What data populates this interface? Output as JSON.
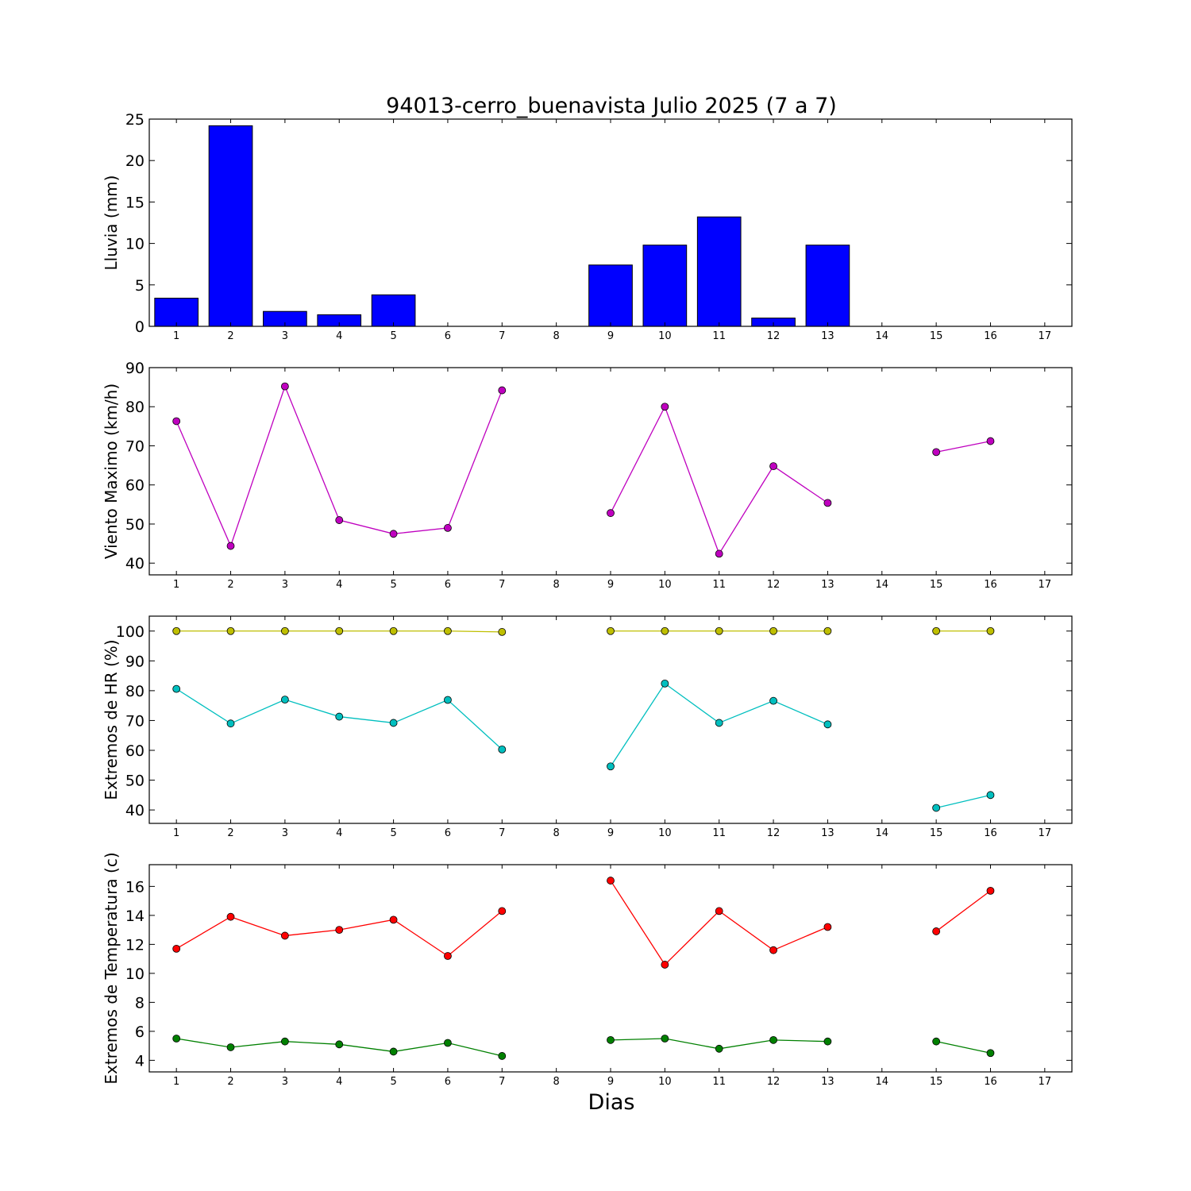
{
  "figure": {
    "title": "94013-cerro_buenavista Julio 2025  (7 a 7)",
    "xlabel": "Dias"
  },
  "chart_data": [
    {
      "type": "bar",
      "ylabel": "Lluvia (mm)",
      "ylim": [
        0,
        25
      ],
      "yticks": [
        0,
        5,
        10,
        15,
        20,
        25
      ],
      "xlim": [
        0.5,
        17.5
      ],
      "xticks": [
        1,
        2,
        3,
        4,
        5,
        6,
        7,
        8,
        9,
        10,
        11,
        12,
        13,
        14,
        15,
        16,
        17
      ],
      "categories": [
        1,
        2,
        3,
        4,
        5,
        6,
        7,
        8,
        9,
        10,
        11,
        12,
        13,
        14,
        15,
        16,
        17
      ],
      "values": [
        3.4,
        24.2,
        1.8,
        1.4,
        3.8,
        0,
        0,
        null,
        7.4,
        9.8,
        13.2,
        1.0,
        9.8,
        null,
        0,
        0,
        null
      ],
      "color": "#0000ff"
    },
    {
      "type": "line",
      "ylabel": "Viento Maximo (km/h)",
      "ylim": [
        37,
        90
      ],
      "yticks": [
        40,
        50,
        60,
        70,
        80,
        90
      ],
      "xlim": [
        0.5,
        17.5
      ],
      "xticks": [
        1,
        2,
        3,
        4,
        5,
        6,
        7,
        8,
        9,
        10,
        11,
        12,
        13,
        14,
        15,
        16,
        17
      ],
      "x": [
        1,
        2,
        3,
        4,
        5,
        6,
        7,
        8,
        9,
        10,
        11,
        12,
        13,
        14,
        15,
        16,
        17
      ],
      "series": [
        {
          "values": [
            76.3,
            44.4,
            85.2,
            51.0,
            47.5,
            49.0,
            84.2,
            null,
            52.8,
            80.0,
            42.4,
            64.8,
            55.4,
            null,
            68.4,
            71.2,
            null
          ],
          "color": "#bf00bf"
        }
      ]
    },
    {
      "type": "line",
      "ylabel": "Extremos de HR (%)",
      "ylim": [
        35.5,
        105
      ],
      "yticks": [
        40,
        50,
        60,
        70,
        80,
        90,
        100
      ],
      "xlim": [
        0.5,
        17.5
      ],
      "xticks": [
        1,
        2,
        3,
        4,
        5,
        6,
        7,
        8,
        9,
        10,
        11,
        12,
        13,
        14,
        15,
        16,
        17
      ],
      "x": [
        1,
        2,
        3,
        4,
        5,
        6,
        7,
        8,
        9,
        10,
        11,
        12,
        13,
        14,
        15,
        16,
        17
      ],
      "series": [
        {
          "values": [
            100,
            100,
            100,
            100,
            100,
            100,
            99.7,
            null,
            100,
            100,
            100,
            100,
            100,
            null,
            100,
            100,
            null
          ],
          "color": "#bfbf00"
        },
        {
          "values": [
            80.6,
            69.0,
            77.0,
            71.3,
            69.2,
            76.9,
            60.3,
            null,
            54.6,
            82.4,
            69.2,
            76.6,
            68.7,
            null,
            40.7,
            45.0,
            null
          ],
          "color": "#00bfbf"
        }
      ]
    },
    {
      "type": "line",
      "ylabel": "Extremos de Temperatura (c)",
      "ylim": [
        3.2,
        17.5
      ],
      "yticks": [
        4,
        6,
        8,
        10,
        12,
        14,
        16
      ],
      "xlim": [
        0.5,
        17.5
      ],
      "xticks": [
        1,
        2,
        3,
        4,
        5,
        6,
        7,
        8,
        9,
        10,
        11,
        12,
        13,
        14,
        15,
        16,
        17
      ],
      "x": [
        1,
        2,
        3,
        4,
        5,
        6,
        7,
        8,
        9,
        10,
        11,
        12,
        13,
        14,
        15,
        16,
        17
      ],
      "series": [
        {
          "values": [
            11.7,
            13.9,
            12.6,
            13.0,
            13.7,
            11.2,
            14.3,
            null,
            16.4,
            10.6,
            14.3,
            11.6,
            13.2,
            null,
            12.9,
            15.7,
            null
          ],
          "color": "#ff0000"
        },
        {
          "values": [
            5.5,
            4.9,
            5.3,
            5.1,
            4.6,
            5.2,
            4.3,
            null,
            5.4,
            5.5,
            4.8,
            5.4,
            5.3,
            null,
            5.3,
            4.5,
            null
          ],
          "color": "#008000"
        }
      ]
    }
  ]
}
